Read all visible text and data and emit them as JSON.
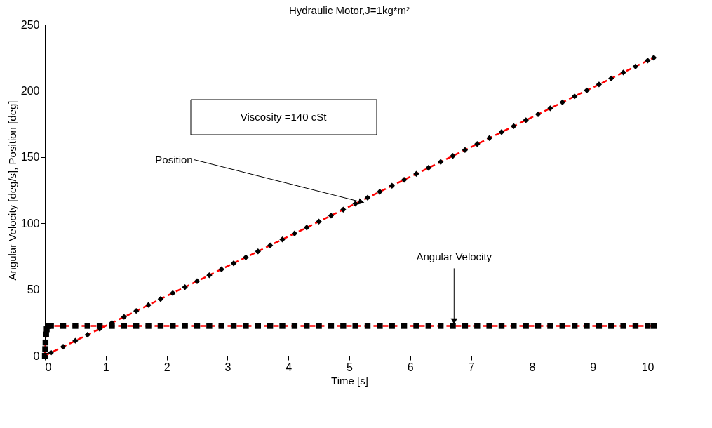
{
  "chart_data": {
    "type": "line",
    "title": "Hydraulic Motor,J=1kg*m²",
    "xlabel": "Time [s]",
    "ylabel": "Angular Velocity [deg/s], Position [deg]",
    "xlim": [
      0,
      10
    ],
    "ylim": [
      0,
      250
    ],
    "xticks": [
      0,
      1,
      2,
      3,
      4,
      5,
      6,
      7,
      8,
      9,
      10
    ],
    "yticks": [
      0,
      50,
      100,
      150,
      200,
      250
    ],
    "grid": false,
    "line_style": "dashed",
    "series": [
      {
        "color": "#ff0000",
        "marker": "diamond",
        "x": [
          0,
          0.1,
          0.3,
          0.5,
          0.7,
          0.9,
          1.1,
          1.3,
          1.5,
          1.7,
          1.9,
          2.1,
          2.3,
          2.5,
          2.7,
          2.9,
          3.1,
          3.3,
          3.5,
          3.7,
          3.9,
          4.1,
          4.3,
          4.5,
          4.7,
          4.9,
          5.1,
          5.3,
          5.5,
          5.7,
          5.9,
          6.1,
          6.3,
          6.5,
          6.7,
          6.9,
          7.1,
          7.3,
          7.5,
          7.7,
          7.9,
          8.1,
          8.3,
          8.5,
          8.7,
          8.9,
          9.1,
          9.3,
          9.5,
          9.7,
          9.9,
          10
        ],
        "values": [
          0,
          2.3,
          6.8,
          11.3,
          15.8,
          20.3,
          24.8,
          29.3,
          33.8,
          38.3,
          42.8,
          47.3,
          51.8,
          56.3,
          60.8,
          65.3,
          69.8,
          74.3,
          78.8,
          83.3,
          87.8,
          92.3,
          96.8,
          101.3,
          105.8,
          110.3,
          114.8,
          119.3,
          123.8,
          128.3,
          132.8,
          137.3,
          141.8,
          146.3,
          150.8,
          155.3,
          159.8,
          164.3,
          168.8,
          173.3,
          177.8,
          182.3,
          186.8,
          191.3,
          195.8,
          200.3,
          204.8,
          209.3,
          213.8,
          218.3,
          222.8,
          225
        ]
      },
      {
        "color": "#ff0000",
        "marker": "square",
        "x": [
          0,
          0.005,
          0.01,
          0.02,
          0.03,
          0.05,
          0.1,
          0.3,
          0.5,
          0.7,
          0.9,
          1.1,
          1.3,
          1.5,
          1.7,
          1.9,
          2.1,
          2.3,
          2.5,
          2.7,
          2.9,
          3.1,
          3.3,
          3.5,
          3.7,
          3.9,
          4.1,
          4.3,
          4.5,
          4.7,
          4.9,
          5.1,
          5.3,
          5.5,
          5.7,
          5.9,
          6.1,
          6.3,
          6.5,
          6.7,
          6.9,
          7.1,
          7.3,
          7.5,
          7.7,
          7.9,
          8.1,
          8.3,
          8.5,
          8.7,
          8.9,
          9.1,
          9.3,
          9.5,
          9.7,
          9.9,
          10
        ],
        "values": [
          0,
          5,
          10,
          16,
          20,
          22.5,
          22.5,
          22.5,
          22.5,
          22.5,
          22.5,
          22.5,
          22.5,
          22.5,
          22.5,
          22.5,
          22.5,
          22.5,
          22.5,
          22.5,
          22.5,
          22.5,
          22.5,
          22.5,
          22.5,
          22.5,
          22.5,
          22.5,
          22.5,
          22.5,
          22.5,
          22.5,
          22.5,
          22.5,
          22.5,
          22.5,
          22.5,
          22.5,
          22.5,
          22.5,
          22.5,
          22.5,
          22.5,
          22.5,
          22.5,
          22.5,
          22.5,
          22.5,
          22.5,
          22.5,
          22.5,
          22.5,
          22.5,
          22.5,
          22.5,
          22.5,
          22.5
        ]
      }
    ],
    "annotations": [
      "Viscosity =140 cSt",
      {
        "text": "Position",
        "x": 5.2,
        "y": 116
      },
      {
        "text": "Angular Velocity",
        "x": 6.72,
        "y": 26
      }
    ]
  }
}
